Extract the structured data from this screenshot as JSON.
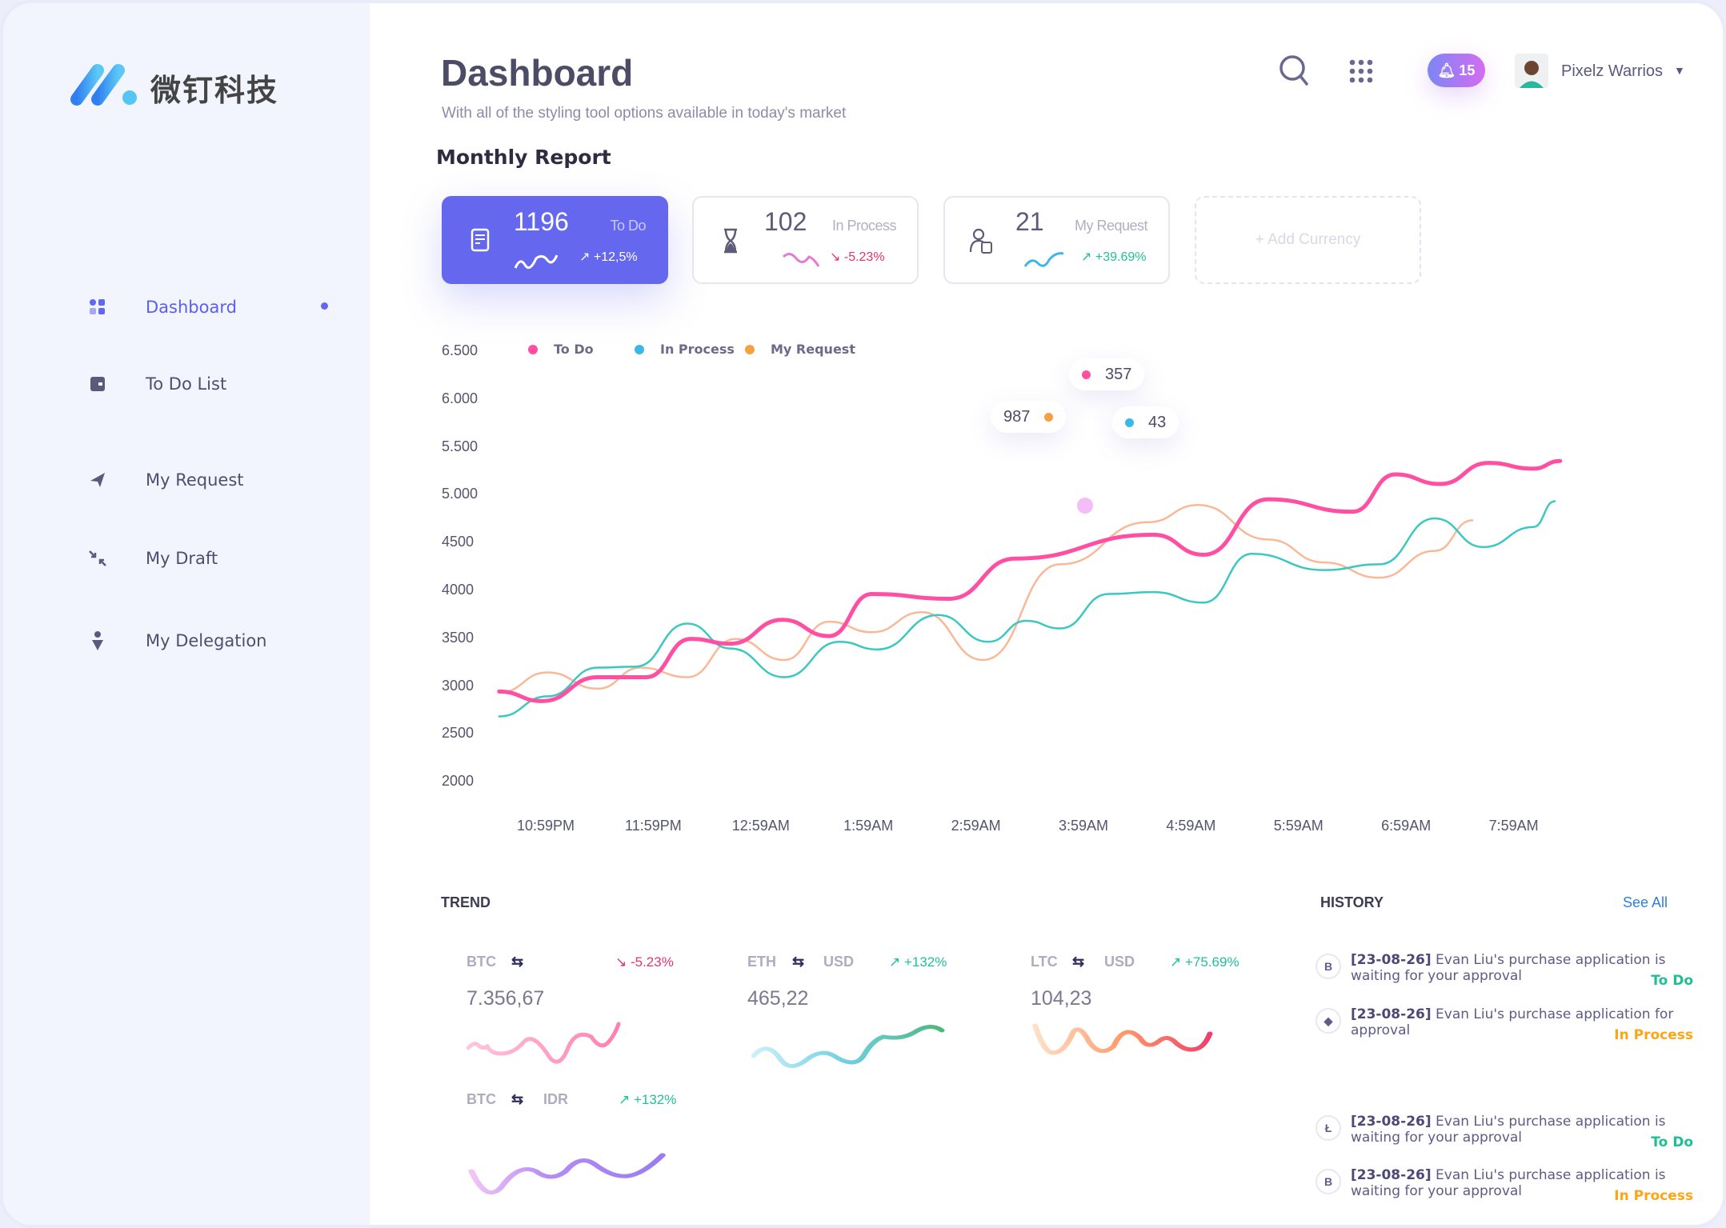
{
  "brand": {
    "name": "微钉科技"
  },
  "sidebar": {
    "items": [
      {
        "label": "Dashboard",
        "icon": "dashboard-icon",
        "active": true
      },
      {
        "label": "To Do List",
        "icon": "wallet-icon"
      },
      {
        "label": "My Request",
        "icon": "send-icon"
      },
      {
        "label": "My Draft",
        "icon": "collapse-icon"
      },
      {
        "label": "My Delegation",
        "icon": "person-pin-icon"
      }
    ]
  },
  "header": {
    "title": "Dashboard",
    "subtitle": "With all of the styling tool options available in today's market",
    "notifications": "15",
    "user": "Pixelz Warrios"
  },
  "monthly": {
    "title": "Monthly Report",
    "cards": [
      {
        "value": "1196",
        "label": "To Do",
        "change": "+12,5%",
        "trend": "up",
        "icon": "document-list-icon"
      },
      {
        "value": "102",
        "label": "In Process",
        "change": "-5.23%",
        "trend": "down",
        "icon": "hourglass-icon"
      },
      {
        "value": "21",
        "label": "My Request",
        "change": "+39.69%",
        "trend": "up",
        "icon": "user-document-icon"
      }
    ],
    "add_label": "+ Add Currency"
  },
  "colors": {
    "primary": "#6568ee",
    "todo": "#ff4fa3",
    "in_process": "#3cc8c0",
    "my_request": "#f5a142",
    "up": "#20c09a",
    "down": "#e8336b"
  },
  "chart_data": {
    "type": "line",
    "y_ticks": [
      "6.500",
      "6.000",
      "5.500",
      "5.000",
      "4500",
      "4000",
      "3500",
      "3000",
      "2500",
      "2000"
    ],
    "ylim": [
      2000,
      6500
    ],
    "x_ticks": [
      "10:59PM",
      "11:59PM",
      "12:59AM",
      "1:59AM",
      "2:59AM",
      "3:59AM",
      "4:59AM",
      "5:59AM",
      "6:59AM",
      "7:59AM"
    ],
    "grid": false,
    "legend_position": "top-left",
    "series": [
      {
        "name": "To Do",
        "color": "#ff4fa3",
        "points": [
          [
            "10:33PM",
            2950
          ],
          [
            "10:57PM",
            2850
          ],
          [
            "11:28PM",
            3100
          ],
          [
            "11:55PM",
            3100
          ],
          [
            "12:20AM",
            3500
          ],
          [
            "12:42AM",
            3450
          ],
          [
            "1:11AM",
            3700
          ],
          [
            "1:37AM",
            3530
          ],
          [
            "2:01AM",
            3970
          ],
          [
            "2:44AM",
            3920
          ],
          [
            "3:21AM",
            4340
          ],
          [
            "4:38AM",
            4590
          ],
          [
            "5:06AM",
            4380
          ],
          [
            "5:42AM",
            4960
          ],
          [
            "6:29AM",
            4830
          ],
          [
            "6:53AM",
            5220
          ],
          [
            "7:18AM",
            5120
          ],
          [
            "7:45AM",
            5340
          ],
          [
            "8:10AM",
            5280
          ],
          [
            "8:25AM",
            5360
          ]
        ]
      },
      {
        "name": "In Process",
        "color": "#3cc8c0",
        "points": [
          [
            "10:33PM",
            2690
          ],
          [
            "11:00PM",
            2900
          ],
          [
            "11:28PM",
            3200
          ],
          [
            "11:49PM",
            3210
          ],
          [
            "12:18AM",
            3660
          ],
          [
            "12:42AM",
            3400
          ],
          [
            "1:12AM",
            3100
          ],
          [
            "1:43AM",
            3470
          ],
          [
            "2:04AM",
            3390
          ],
          [
            "2:38AM",
            3750
          ],
          [
            "3:06AM",
            3470
          ],
          [
            "3:27AM",
            3690
          ],
          [
            "3:46AM",
            3610
          ],
          [
            "4:13AM",
            3970
          ],
          [
            "4:38AM",
            3990
          ],
          [
            "5:06AM",
            3880
          ],
          [
            "5:33AM",
            4390
          ],
          [
            "6:13AM",
            4220
          ],
          [
            "6:44AM",
            4280
          ],
          [
            "7:15AM",
            4760
          ],
          [
            "7:42AM",
            4460
          ],
          [
            "8:10AM",
            4670
          ],
          [
            "8:22AM",
            4940
          ]
        ]
      },
      {
        "name": "My Request",
        "color": "#f5a142",
        "points": [
          [
            "10:33PM",
            2940
          ],
          [
            "11:00PM",
            3150
          ],
          [
            "11:28PM",
            2980
          ],
          [
            "11:52PM",
            3200
          ],
          [
            "12:18AM",
            3100
          ],
          [
            "12:45AM",
            3500
          ],
          [
            "1:12AM",
            3280
          ],
          [
            "1:37AM",
            3680
          ],
          [
            "2:01AM",
            3570
          ],
          [
            "2:29AM",
            3780
          ],
          [
            "3:03AM",
            3280
          ],
          [
            "3:46AM",
            4280
          ],
          [
            "4:35AM",
            4720
          ],
          [
            "5:03AM",
            4900
          ],
          [
            "5:42AM",
            4540
          ],
          [
            "6:13AM",
            4300
          ],
          [
            "6:44AM",
            4140
          ],
          [
            "7:15AM",
            4420
          ],
          [
            "7:36AM",
            4740
          ]
        ]
      }
    ],
    "annotations": [
      {
        "value": "357",
        "series": "To Do"
      },
      {
        "value": "987",
        "series": "My Request"
      },
      {
        "value": "43",
        "series": "In Process"
      }
    ]
  },
  "trend": {
    "title": "TREND",
    "items": [
      {
        "base": "BTC",
        "quote": "",
        "value": "7.356,67",
        "change": "-5.23%",
        "dir": "down"
      },
      {
        "base": "ETH",
        "quote": "USD",
        "value": "465,22",
        "change": "+132%",
        "dir": "up"
      },
      {
        "base": "LTC",
        "quote": "USD",
        "value": "104,23",
        "change": "+75.69%",
        "dir": "up"
      },
      {
        "base": "BTC",
        "quote": "IDR",
        "value": "",
        "change": "+132%",
        "dir": "up"
      }
    ]
  },
  "history": {
    "title": "HISTORY",
    "see_all": "See All",
    "items": [
      {
        "icon": "bitcoin-icon",
        "glyph": "B",
        "date": "[23-08-26]",
        "text": "Evan Liu's purchase application is waiting for your approval",
        "status": "To Do"
      },
      {
        "icon": "ethereum-icon",
        "glyph": "◆",
        "date": "[23-08-26]",
        "text": "Evan Liu's purchase application for approval",
        "status": "In Process"
      },
      {
        "icon": "litecoin-icon",
        "glyph": "Ł",
        "date": "[23-08-26]",
        "text": "Evan Liu's purchase application is waiting for your approval",
        "status": "To Do"
      },
      {
        "icon": "bitcoin-icon",
        "glyph": "B",
        "date": "[23-08-26]",
        "text": "Evan Liu's purchase application is waiting for your approval",
        "status": "In Process"
      }
    ]
  }
}
